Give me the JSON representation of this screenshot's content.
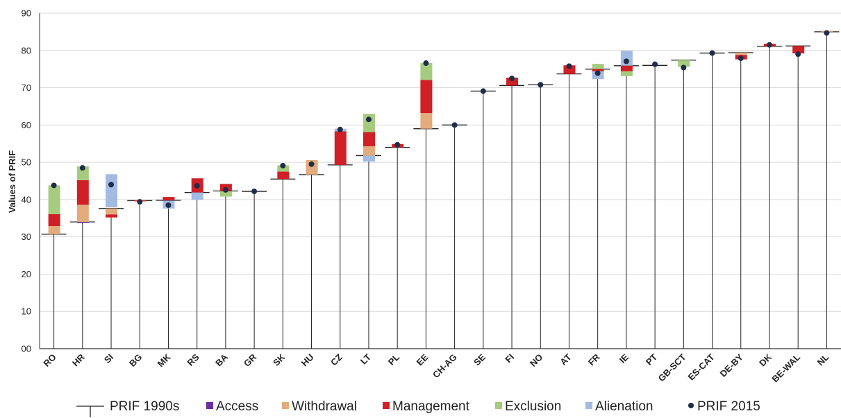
{
  "chart_data": {
    "type": "bar",
    "title": "",
    "xlabel": "",
    "ylabel": "Values of PRIF",
    "ylim": [
      0,
      90
    ],
    "y_ticks": [
      "00",
      "10",
      "20",
      "30",
      "40",
      "50",
      "60",
      "70",
      "80",
      "90"
    ],
    "grid": true,
    "legend_position": "bottom",
    "categories": [
      "RO",
      "HR",
      "SI",
      "BG",
      "MK",
      "RS",
      "BA",
      "GR",
      "SK",
      "HU",
      "CZ",
      "LT",
      "PL",
      "EE",
      "CH-AG",
      "SE",
      "FI",
      "NO",
      "AT",
      "FR",
      "IE",
      "PT",
      "GB-SCT",
      "ES-CAT",
      "DE-BY",
      "DK",
      "BE-WAL",
      "NL"
    ],
    "prif_1990s": [
      30.7,
      34.0,
      37.6,
      39.7,
      39.8,
      41.9,
      42.3,
      42.2,
      45.5,
      46.7,
      49.3,
      51.8,
      54.0,
      59.0,
      60.0,
      69.1,
      70.6,
      70.8,
      73.7,
      75.0,
      75.9,
      76.0,
      77.4,
      79.3,
      79.4,
      81.1,
      81.2,
      85.0
    ],
    "prif_2015": [
      43.8,
      48.5,
      44.0,
      39.4,
      38.5,
      43.7,
      42.6,
      42.2,
      49.1,
      49.5,
      58.8,
      61.5,
      54.7,
      76.6,
      60.0,
      69.1,
      72.5,
      70.8,
      75.8,
      73.9,
      77.1,
      76.3,
      75.4,
      79.3,
      77.9,
      81.5,
      79.0,
      84.7
    ],
    "segments": [
      {
        "category": "RO",
        "component": "Withdrawal",
        "from": 30.7,
        "to": 32.9
      },
      {
        "category": "RO",
        "component": "Management",
        "from": 32.9,
        "to": 36.1
      },
      {
        "category": "RO",
        "component": "Exclusion",
        "from": 36.1,
        "to": 43.8
      },
      {
        "category": "HR",
        "component": "Access",
        "from": 34.0,
        "to": 33.7
      },
      {
        "category": "HR",
        "component": "Withdrawal",
        "from": 34.0,
        "to": 38.6
      },
      {
        "category": "HR",
        "component": "Management",
        "from": 38.6,
        "to": 45.2
      },
      {
        "category": "HR",
        "component": "Exclusion",
        "from": 45.2,
        "to": 48.9
      },
      {
        "category": "SI",
        "component": "Alienation",
        "from": 37.9,
        "to": 46.8
      },
      {
        "category": "SI",
        "component": "Withdrawal",
        "from": 37.6,
        "to": 36.0
      },
      {
        "category": "SI",
        "component": "Management",
        "from": 36.0,
        "to": 35.2
      },
      {
        "category": "BG",
        "component": "Management",
        "from": 39.8,
        "to": 39.6
      },
      {
        "category": "MK",
        "component": "Management",
        "from": 39.8,
        "to": 40.7
      },
      {
        "category": "MK",
        "component": "Alienation",
        "from": 39.7,
        "to": 37.6
      },
      {
        "category": "RS",
        "component": "Management",
        "from": 41.9,
        "to": 45.7
      },
      {
        "category": "RS",
        "component": "Alienation",
        "from": 41.9,
        "to": 39.9
      },
      {
        "category": "BA",
        "component": "Management",
        "from": 42.3,
        "to": 44.2
      },
      {
        "category": "BA",
        "component": "Exclusion",
        "from": 42.2,
        "to": 40.8
      },
      {
        "category": "SK",
        "component": "Management",
        "from": 45.5,
        "to": 47.5
      },
      {
        "category": "SK",
        "component": "Exclusion",
        "from": 47.5,
        "to": 49.2
      },
      {
        "category": "HU",
        "component": "Withdrawal",
        "from": 46.7,
        "to": 50.6
      },
      {
        "category": "CZ",
        "component": "Management",
        "from": 49.3,
        "to": 58.3
      },
      {
        "category": "CZ",
        "component": "Alienation",
        "from": 58.3,
        "to": 59.0
      },
      {
        "category": "LT",
        "component": "Withdrawal",
        "from": 51.8,
        "to": 54.3
      },
      {
        "category": "LT",
        "component": "Management",
        "from": 54.3,
        "to": 58.1
      },
      {
        "category": "LT",
        "component": "Exclusion",
        "from": 58.1,
        "to": 63.0
      },
      {
        "category": "LT",
        "component": "Alienation",
        "from": 51.8,
        "to": 50.2
      },
      {
        "category": "PL",
        "component": "Management",
        "from": 54.0,
        "to": 54.9
      },
      {
        "category": "EE",
        "component": "Withdrawal",
        "from": 59.0,
        "to": 63.2
      },
      {
        "category": "EE",
        "component": "Management",
        "from": 63.2,
        "to": 72.1
      },
      {
        "category": "EE",
        "component": "Exclusion",
        "from": 72.1,
        "to": 76.6
      },
      {
        "category": "FI",
        "component": "Management",
        "from": 70.6,
        "to": 72.7
      },
      {
        "category": "AT",
        "component": "Management",
        "from": 73.7,
        "to": 76.0
      },
      {
        "category": "FR",
        "component": "Exclusion",
        "from": 75.0,
        "to": 76.4
      },
      {
        "category": "FR",
        "component": "Management",
        "from": 75.0,
        "to": 74.4
      },
      {
        "category": "FR",
        "component": "Alienation",
        "from": 74.4,
        "to": 72.3
      },
      {
        "category": "IE",
        "component": "Alienation",
        "from": 75.9,
        "to": 79.9
      },
      {
        "category": "IE",
        "component": "Management",
        "from": 75.9,
        "to": 74.4
      },
      {
        "category": "IE",
        "component": "Exclusion",
        "from": 74.4,
        "to": 73.1
      },
      {
        "category": "GB-SCT",
        "component": "Exclusion",
        "from": 77.4,
        "to": 75.6
      },
      {
        "category": "DE-BY",
        "component": "Withdrawal",
        "from": 79.4,
        "to": 78.8
      },
      {
        "category": "DE-BY",
        "component": "Management",
        "from": 78.8,
        "to": 77.6
      },
      {
        "category": "DK",
        "component": "Management",
        "from": 81.1,
        "to": 81.8
      },
      {
        "category": "BE-WAL",
        "component": "Management",
        "from": 81.2,
        "to": 79.2
      },
      {
        "category": "NL",
        "component": "Withdrawal",
        "from": 85.0,
        "to": 85.3
      }
    ],
    "colors": {
      "Access": "#6a2fa0",
      "Withdrawal": "#e2ac7c",
      "Management": "#d11f26",
      "Exclusion": "#a5cc7e",
      "Alienation": "#a3bbe3",
      "PRIF 2015": "#1f2d4a",
      "PRIF 1990s": "#222222"
    },
    "legend": [
      {
        "label": "PRIF 1990s",
        "kind": "line",
        "color": "#222222"
      },
      {
        "label": "Access",
        "kind": "square",
        "color": "#6a2fa0"
      },
      {
        "label": "Withdrawal",
        "kind": "square",
        "color": "#e2ac7c"
      },
      {
        "label": "Management",
        "kind": "square",
        "color": "#d11f26"
      },
      {
        "label": "Exclusion",
        "kind": "square",
        "color": "#a5cc7e"
      },
      {
        "label": "Alienation",
        "kind": "square",
        "color": "#a3bbe3"
      },
      {
        "label": "PRIF 2015",
        "kind": "dot",
        "color": "#1f2d4a"
      }
    ]
  }
}
